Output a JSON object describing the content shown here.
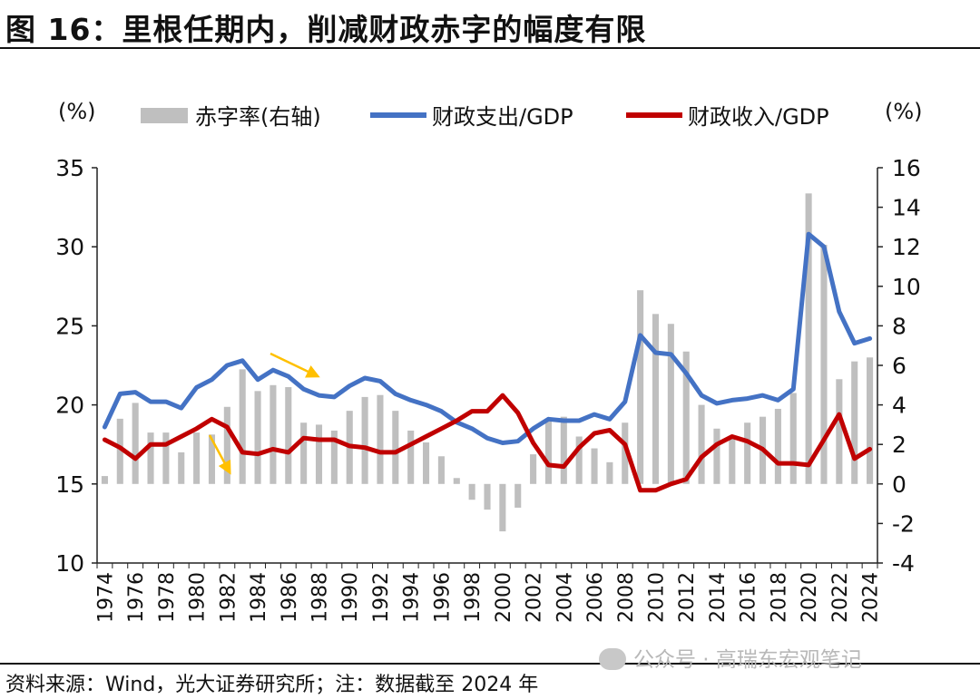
{
  "title": "图 16：里根任期内，削减财政赤字的幅度有限",
  "source": "资料来源：Wind，光大证券研究所；注：数据截至 2024 年",
  "watermark": "公众号 · 高瑞东宏观笔记",
  "chart_data": {
    "type": "bar+line",
    "left_unit": "(%)",
    "right_unit": "(%)",
    "legend_position": "top",
    "grid": false,
    "x": [
      1974,
      1975,
      1976,
      1977,
      1978,
      1979,
      1980,
      1981,
      1982,
      1983,
      1984,
      1985,
      1986,
      1987,
      1988,
      1989,
      1990,
      1991,
      1992,
      1993,
      1994,
      1995,
      1996,
      1997,
      1998,
      1999,
      2000,
      2001,
      2002,
      2003,
      2004,
      2005,
      2006,
      2007,
      2008,
      2009,
      2010,
      2011,
      2012,
      2013,
      2014,
      2015,
      2016,
      2017,
      2018,
      2019,
      2020,
      2021,
      2022,
      2023,
      2024
    ],
    "x_tick_labels": [
      "1974",
      "1976",
      "1978",
      "1980",
      "1982",
      "1984",
      "1986",
      "1988",
      "1990",
      "1992",
      "1994",
      "1996",
      "1998",
      "2000",
      "2002",
      "2004",
      "2006",
      "2008",
      "2010",
      "2012",
      "2014",
      "2016",
      "2018",
      "2020",
      "2022",
      "2024"
    ],
    "left_axis": {
      "min": 10,
      "max": 35,
      "ticks": [
        "10",
        "15",
        "20",
        "25",
        "30",
        "35"
      ]
    },
    "right_axis": {
      "min": -4,
      "max": 16,
      "ticks": [
        "-4",
        "-2",
        "0",
        "2",
        "4",
        "6",
        "8",
        "10",
        "12",
        "14",
        "16"
      ]
    },
    "series": [
      {
        "name": "赤字率(右轴)",
        "type": "bar",
        "axis": "right",
        "color": "#bfbfbf",
        "values": [
          0.4,
          3.3,
          4.1,
          2.6,
          2.6,
          1.6,
          2.6,
          2.5,
          3.9,
          5.8,
          4.7,
          5.0,
          4.9,
          3.1,
          3.0,
          2.7,
          3.7,
          4.4,
          4.5,
          3.7,
          2.7,
          2.1,
          1.4,
          0.3,
          -0.8,
          -1.3,
          -2.4,
          -1.2,
          1.5,
          3.3,
          3.4,
          2.4,
          1.8,
          1.1,
          3.1,
          9.8,
          8.6,
          8.1,
          6.7,
          4.0,
          2.8,
          2.4,
          3.1,
          3.4,
          3.8,
          4.6,
          14.7,
          12.1,
          5.3,
          6.2,
          6.4
        ]
      },
      {
        "name": "财政支出/GDP",
        "type": "line",
        "axis": "left",
        "color": "#4472c4",
        "values": [
          18.6,
          20.7,
          20.8,
          20.2,
          20.2,
          19.8,
          21.1,
          21.6,
          22.5,
          22.8,
          21.6,
          22.2,
          21.8,
          21.0,
          20.6,
          20.5,
          21.2,
          21.7,
          21.5,
          20.7,
          20.3,
          20.0,
          19.6,
          18.9,
          18.5,
          17.9,
          17.6,
          17.7,
          18.5,
          19.1,
          19.0,
          19.0,
          19.4,
          19.1,
          20.2,
          24.4,
          23.3,
          23.2,
          22.0,
          20.6,
          20.1,
          20.3,
          20.4,
          20.6,
          20.3,
          21.0,
          30.8,
          30.0,
          25.9,
          23.9,
          24.2
        ]
      },
      {
        "name": "财政收入/GDP",
        "type": "line",
        "axis": "left",
        "color": "#c00000",
        "values": [
          17.8,
          17.3,
          16.6,
          17.5,
          17.5,
          18.0,
          18.5,
          19.1,
          18.6,
          17.0,
          16.9,
          17.2,
          17.0,
          17.9,
          17.8,
          17.8,
          17.4,
          17.3,
          17.0,
          17.0,
          17.5,
          18.0,
          18.5,
          19.0,
          19.6,
          19.6,
          20.6,
          19.5,
          17.6,
          16.2,
          16.1,
          17.3,
          18.2,
          18.4,
          17.5,
          14.6,
          14.6,
          15.0,
          15.3,
          16.7,
          17.5,
          18.0,
          17.7,
          17.2,
          16.3,
          16.3,
          16.2,
          17.8,
          19.4,
          16.6,
          17.2
        ]
      }
    ],
    "annotations": [
      {
        "type": "arrow",
        "color": "#ffc000",
        "description": ""
      },
      {
        "type": "arrow",
        "color": "#ffc000",
        "description": ""
      }
    ]
  }
}
